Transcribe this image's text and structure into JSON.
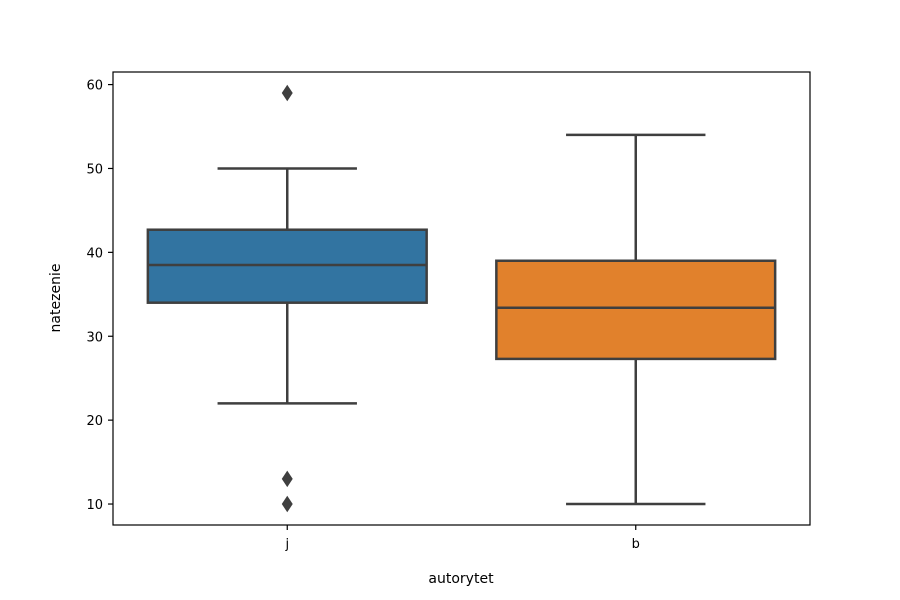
{
  "chart_data": {
    "type": "box",
    "xlabel": "autorytet",
    "ylabel": "natezenie",
    "categories": [
      "j",
      "b"
    ],
    "ylim": [
      7.5,
      61.5
    ],
    "yticks": [
      10,
      20,
      30,
      40,
      50,
      60
    ],
    "ytick_labels": [
      "10",
      "20",
      "30",
      "40",
      "50",
      "60"
    ],
    "grid": false,
    "boxes": [
      {
        "category": "j",
        "whisker_low": 22,
        "q1": 34,
        "median": 38.5,
        "q3": 42.7,
        "whisker_high": 50,
        "outliers": [
          59,
          13,
          10
        ],
        "color": "#3274a1"
      },
      {
        "category": "b",
        "whisker_low": 10,
        "q1": 27.3,
        "median": 33.4,
        "q3": 39,
        "whisker_high": 54,
        "outliers": [],
        "color": "#e1812c"
      }
    ],
    "line_color": "#3f3f3f"
  }
}
